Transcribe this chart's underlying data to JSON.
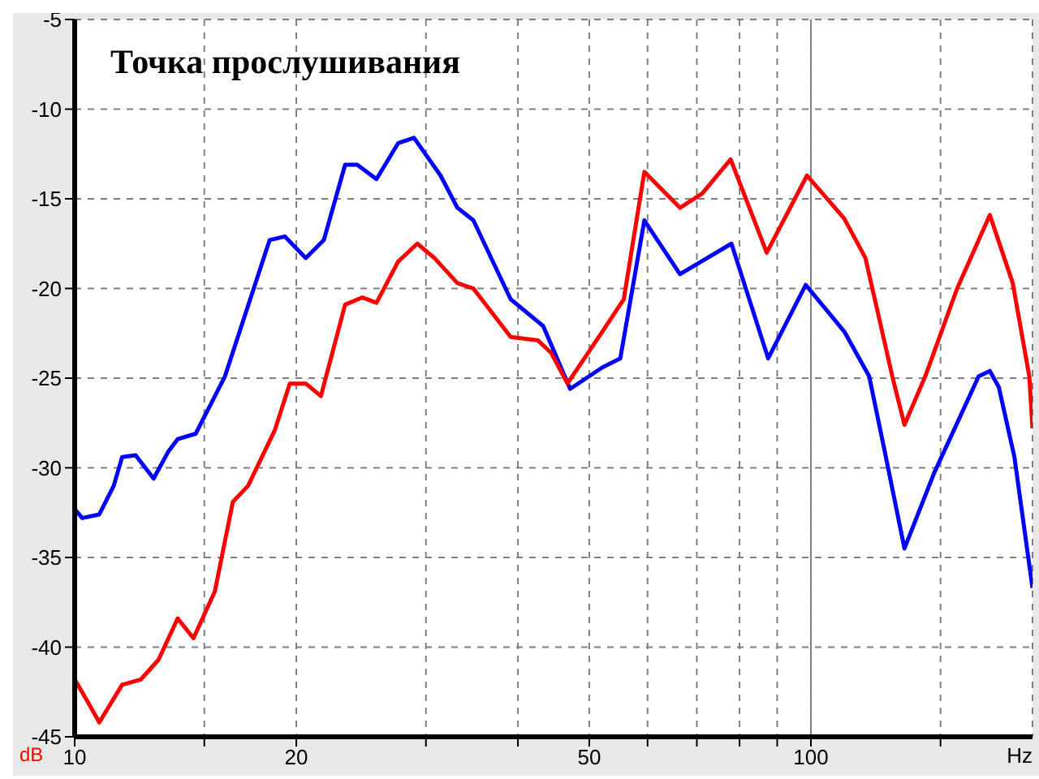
{
  "chart_data": {
    "type": "line",
    "title": "Точка прослушивания",
    "xlabel": "Hz",
    "ylabel": "dB",
    "log": "x",
    "grid": true,
    "line_style": "solid",
    "marker": "none",
    "xlim": [
      10,
      200
    ],
    "ylim": [
      -45,
      -5
    ],
    "xticks": [
      10,
      {
        "value": 15,
        "label": null
      },
      20,
      {
        "value": 30,
        "label": null
      },
      {
        "value": 40,
        "label": null
      },
      50,
      {
        "value": 60,
        "label": null
      },
      {
        "value": 70,
        "label": null
      },
      {
        "value": 80,
        "label": null
      },
      {
        "value": 90,
        "label": null
      },
      100,
      {
        "value": 150,
        "label": null
      }
    ],
    "yticks": [
      -45,
      -40,
      -35,
      -30,
      -25,
      -20,
      -15,
      -10,
      -5
    ],
    "ref_lines": [
      {
        "axis": "x",
        "value": 100,
        "color": "#808080",
        "line_style": "solid"
      }
    ],
    "series": [
      {
        "color": "#0000ff",
        "x": [
          10,
          10.24,
          10.8,
          11.3,
          11.6,
          12.1,
          12.8,
          13.4,
          13.8,
          14.6,
          16.0,
          18.4,
          19.3,
          20.6,
          21.8,
          23.3,
          24.2,
          25.7,
          27.5,
          28.9,
          31.4,
          33.1,
          34.8,
          39.1,
          43.3,
          47.1,
          52.1,
          55.1,
          59.4,
          66.4,
          78.0,
          87.5,
          98.4,
          111,
          120,
          126,
          134,
          147,
          169,
          175,
          180,
          189,
          200
        ],
        "values": [
          -32.3,
          -32.8,
          -32.6,
          -31.0,
          -29.4,
          -29.3,
          -30.6,
          -29.1,
          -28.4,
          -28.1,
          -24.9,
          -17.3,
          -17.1,
          -18.3,
          -17.3,
          -13.1,
          -13.1,
          -13.9,
          -11.9,
          -11.6,
          -13.7,
          -15.5,
          -16.2,
          -20.6,
          -22.1,
          -25.6,
          -24.4,
          -23.9,
          -16.2,
          -19.2,
          -17.5,
          -23.9,
          -19.8,
          -22.4,
          -24.9,
          -29.1,
          -34.5,
          -30.3,
          -24.9,
          -24.6,
          -25.5,
          -29.4,
          -36.7
        ]
      },
      {
        "color": "#ff0000",
        "x": [
          10,
          10.4,
          10.8,
          11.6,
          12.3,
          13.0,
          13.8,
          14.5,
          15.5,
          16.4,
          17.2,
          18.7,
          19.6,
          20.6,
          21.6,
          23.3,
          24.6,
          25.7,
          27.5,
          29.2,
          30.8,
          33.1,
          34.8,
          39.1,
          42.6,
          44.4,
          46.7,
          52.1,
          55.7,
          59.4,
          66.4,
          71.2,
          77.8,
          87.1,
          98.8,
          111,
          118.6,
          129,
          134,
          143,
          158,
          175,
          188,
          198,
          200
        ],
        "values": [
          -41.8,
          -43.0,
          -44.2,
          -42.1,
          -41.8,
          -40.7,
          -38.4,
          -39.5,
          -36.9,
          -31.9,
          -31.0,
          -27.9,
          -25.3,
          -25.3,
          -26.0,
          -20.9,
          -20.5,
          -20.8,
          -18.5,
          -17.5,
          -18.3,
          -19.7,
          -20.0,
          -22.7,
          -22.9,
          -23.6,
          -25.3,
          -22.4,
          -20.6,
          -13.5,
          -15.5,
          -14.7,
          -12.8,
          -18.0,
          -13.7,
          -16.1,
          -18.3,
          -24.9,
          -27.6,
          -24.9,
          -20.0,
          -15.9,
          -19.7,
          -24.9,
          -27.8
        ]
      }
    ]
  }
}
